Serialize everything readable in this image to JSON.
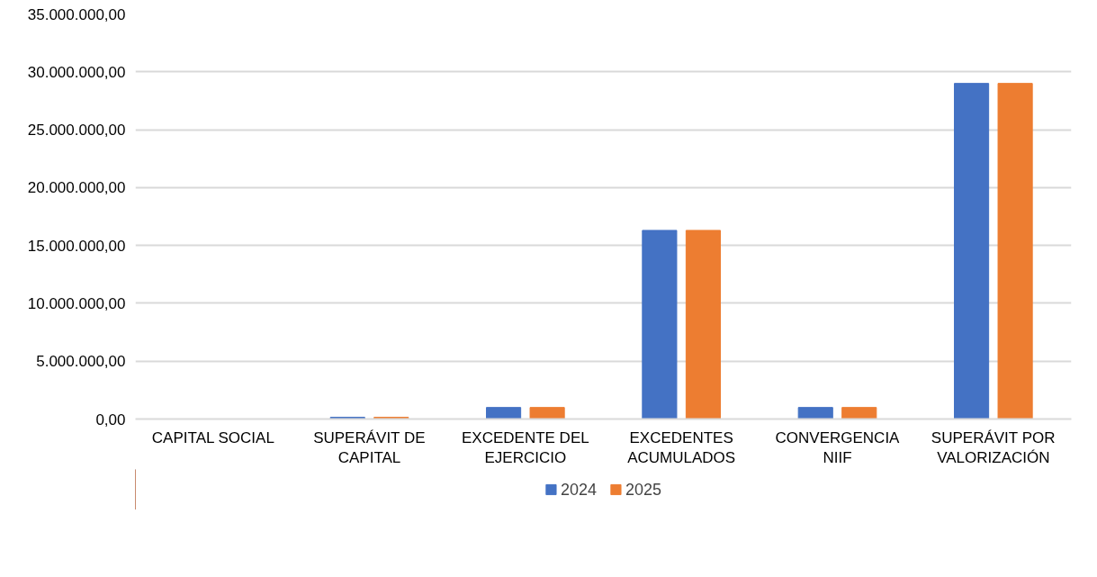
{
  "chart_data": {
    "type": "bar",
    "categories": [
      "CAPITAL SOCIAL",
      "SUPERÁVIT DE CAPITAL",
      "EXCEDENTE DEL EJERCICIO",
      "EXCEDENTES ACUMULADOS",
      "CONVERGENCIA NIIF",
      "SUPERÁVIT POR VALORIZACIÓN"
    ],
    "series": [
      {
        "name": "2024",
        "color": "#4472c4",
        "values": [
          0,
          150000,
          1000000,
          16300000,
          1000000,
          29000000
        ]
      },
      {
        "name": "2025",
        "color": "#ed7d31",
        "values": [
          0,
          150000,
          1000000,
          16300000,
          1000000,
          29000000
        ]
      }
    ],
    "ylim": [
      0,
      35000000
    ],
    "yticks": [
      {
        "value": 0,
        "label": "0,00"
      },
      {
        "value": 5000000,
        "label": "5.000.000,00"
      },
      {
        "value": 10000000,
        "label": "10.000.000,00"
      },
      {
        "value": 15000000,
        "label": "15.000.000,00"
      },
      {
        "value": 20000000,
        "label": "20.000.000,00"
      },
      {
        "value": 25000000,
        "label": "25.000.000,00"
      },
      {
        "value": 30000000,
        "label": "30.000.000,00"
      },
      {
        "value": 35000000,
        "label": "35.000.000,00"
      }
    ],
    "grid": "y",
    "legend": "bottom"
  }
}
